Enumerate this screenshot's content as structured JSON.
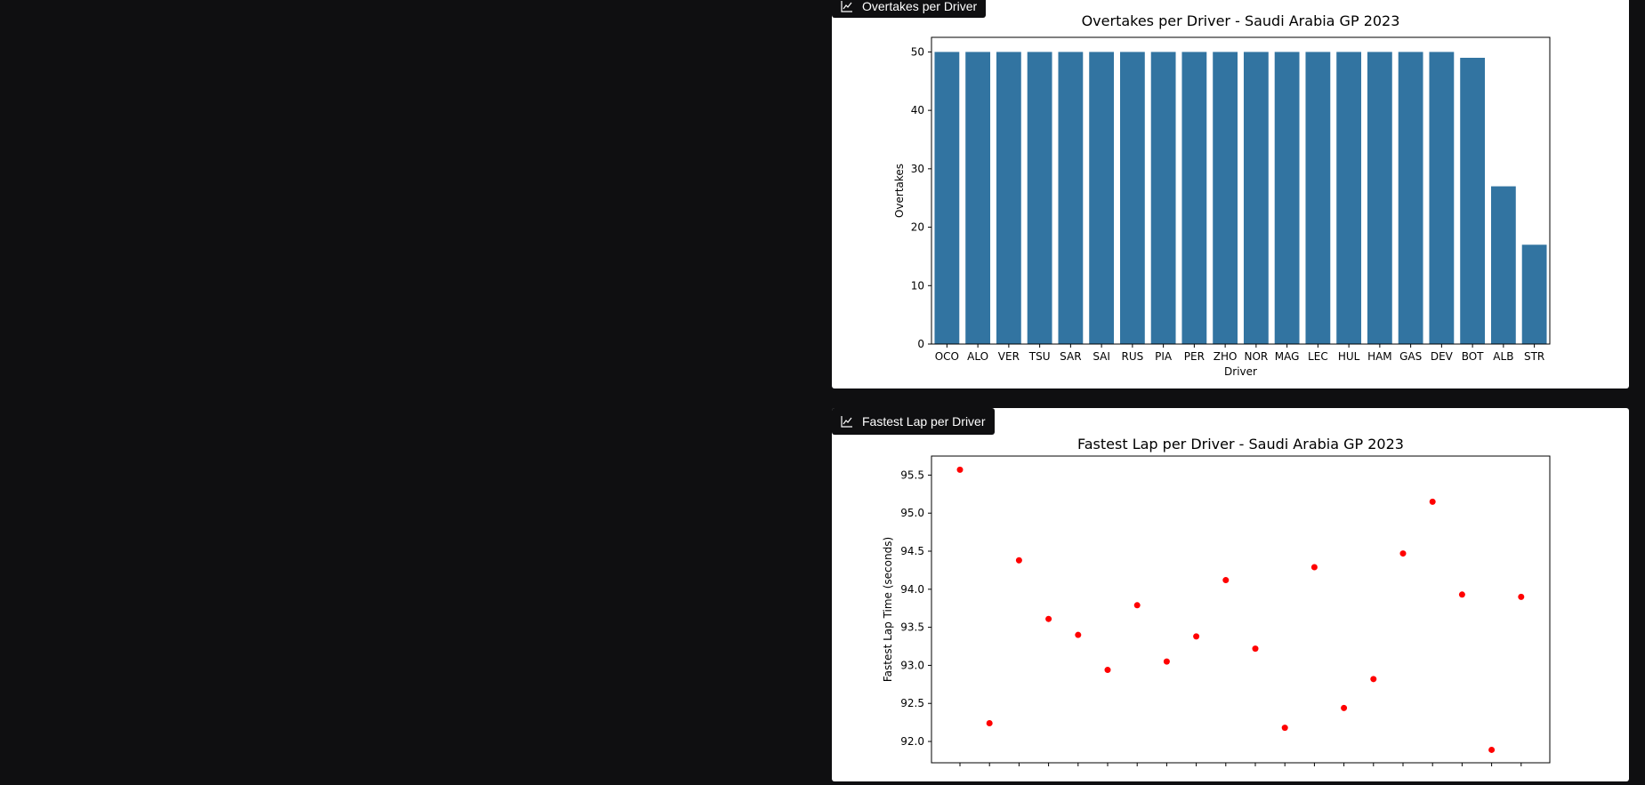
{
  "panels": [
    {
      "tab_label": "Overtakes per Driver",
      "icon": "chart-icon"
    },
    {
      "tab_label": "Fastest Lap per Driver",
      "icon": "chart-icon"
    }
  ],
  "chart_data": [
    {
      "type": "bar",
      "title": "Overtakes per Driver - Saudi Arabia GP 2023",
      "xlabel": "Driver",
      "ylabel": "Overtakes",
      "categories": [
        "OCO",
        "ALO",
        "VER",
        "TSU",
        "SAR",
        "SAI",
        "RUS",
        "PIA",
        "PER",
        "ZHO",
        "NOR",
        "MAG",
        "LEC",
        "HUL",
        "HAM",
        "GAS",
        "DEV",
        "BOT",
        "ALB",
        "STR"
      ],
      "values": [
        50,
        50,
        50,
        50,
        50,
        50,
        50,
        50,
        50,
        50,
        50,
        50,
        50,
        50,
        50,
        50,
        50,
        49,
        27,
        17
      ],
      "ylim": [
        0,
        52.5
      ],
      "yticks": [
        0,
        10,
        20,
        30,
        40,
        50
      ],
      "color": "#3274a1"
    },
    {
      "type": "scatter",
      "title": "Fastest Lap per Driver - Saudi Arabia GP 2023",
      "ylabel": "Fastest Lap Time (seconds)",
      "values": [
        95.57,
        92.24,
        94.38,
        93.61,
        93.4,
        92.94,
        93.79,
        93.05,
        93.38,
        94.12,
        93.22,
        92.18,
        94.29,
        92.44,
        92.82,
        94.47,
        95.15,
        93.93,
        91.89,
        93.9
      ],
      "ylim": [
        91.72,
        95.75
      ],
      "yticks": [
        92.0,
        92.5,
        93.0,
        93.5,
        94.0,
        94.5,
        95.0,
        95.5
      ],
      "color": "#ff0000"
    }
  ]
}
